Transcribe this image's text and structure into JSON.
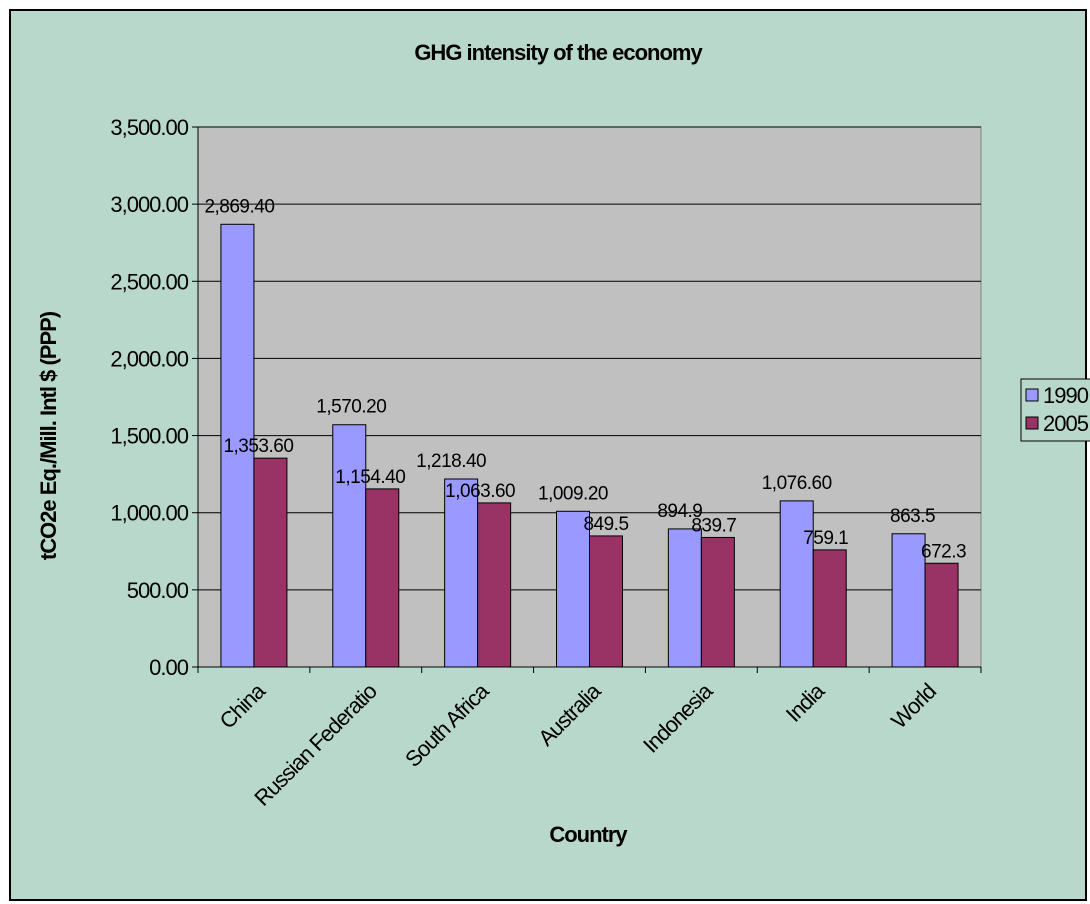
{
  "chart_data": {
    "type": "bar",
    "title": "GHG intensity of the economy",
    "xlabel": "Country",
    "ylabel": "tCO2e Eq./Mill. Intl $ (PPP)",
    "categories": [
      "China",
      "Russian Federation",
      "South Africa",
      "Australia",
      "Indonesia",
      "India",
      "World"
    ],
    "category_labels_shown": [
      "China",
      "Russian Federatio",
      "South Africa",
      "Australia",
      "Indonesia",
      "India",
      "World"
    ],
    "series": [
      {
        "name": "1990",
        "color": "#9999ff",
        "values": [
          2869.4,
          1570.2,
          1218.4,
          1009.2,
          894.9,
          1076.6,
          863.5
        ],
        "labels": [
          "2,869.40",
          "1,570.20",
          "1,218.40",
          "1,009.20",
          "894.9",
          "1,076.60",
          "863.5"
        ]
      },
      {
        "name": "2005",
        "color": "#993366",
        "values": [
          1353.6,
          1154.4,
          1063.6,
          849.5,
          839.7,
          759.1,
          672.3
        ],
        "labels": [
          "1,353.60",
          "1,154.40",
          "1,063.60",
          "849.5",
          "839.7",
          "759.1",
          "672.3"
        ]
      }
    ],
    "ylim": [
      0,
      3500
    ],
    "yticks": [
      0,
      500,
      1000,
      1500,
      2000,
      2500,
      3000,
      3500
    ],
    "ytick_labels": [
      "0.00",
      "500.00",
      "1,000.00",
      "1,500.00",
      "2,000.00",
      "2,500.00",
      "3,000.00",
      "3,500.00"
    ],
    "grid": true,
    "plot_background": "#c0c0c0",
    "chart_background": "#b8d8cc",
    "legend_position": "right"
  }
}
